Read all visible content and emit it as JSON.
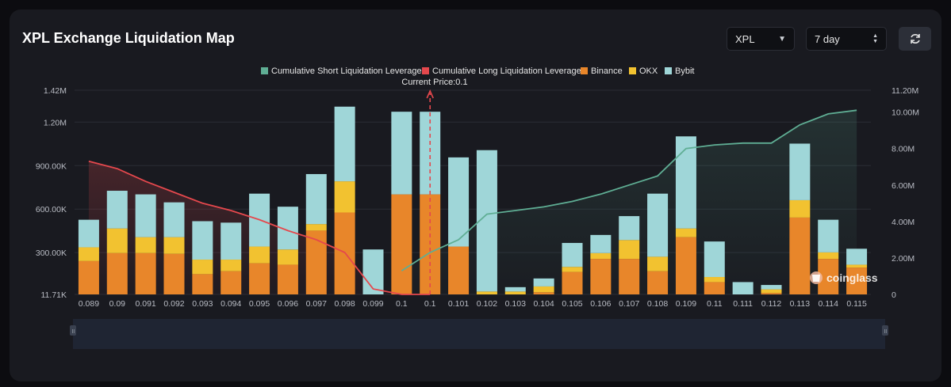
{
  "header": {
    "title": "XPL Exchange Liquidation Map",
    "symbol_value": "XPL",
    "range_value": "7 day"
  },
  "icons": {
    "symbol_dropdown": "caret-down-icon",
    "range_stepper": "up-down-chevron-icon",
    "refresh": "refresh-icon",
    "watermark": "coinglass-logo-icon"
  },
  "watermark": "coinglass",
  "colors": {
    "background": "#191a20",
    "short_line": "#5fae94",
    "long_line": "#e5484d",
    "binance": "#e8862a",
    "okx": "#f2c230",
    "bybit": "#9fd6d8",
    "current_price_marker": "#e5484d"
  },
  "chart_data": {
    "type": "bar",
    "stacked": true,
    "current_price_label": "Current Price:0.1",
    "current_price_index": 12,
    "categories": [
      "0.089",
      "0.09",
      "0.091",
      "0.092",
      "0.093",
      "0.094",
      "0.095",
      "0.096",
      "0.097",
      "0.098",
      "0.099",
      "0.1",
      "0.1",
      "0.101",
      "0.102",
      "0.103",
      "0.104",
      "0.105",
      "0.106",
      "0.107",
      "0.108",
      "0.109",
      "0.11",
      "0.111",
      "0.112",
      "0.113",
      "0.114",
      "0.115"
    ],
    "y_left": {
      "ticks": [
        "11.71K",
        "300.00K",
        "600.00K",
        "900.00K",
        "1.20M",
        "1.42M"
      ],
      "range": [
        11710,
        1420000
      ]
    },
    "y_right": {
      "ticks": [
        "0",
        "2.00M",
        "4.00M",
        "6.00M",
        "8.00M",
        "10.00M",
        "11.20M"
      ],
      "range": [
        0,
        11200000
      ]
    },
    "legend_position": "top-center",
    "grid": true,
    "series": [
      {
        "name": "Binance",
        "kind": "bar",
        "values": [
          230000,
          285000,
          285000,
          280000,
          140000,
          160000,
          215000,
          205000,
          440000,
          565000,
          0,
          690000,
          690000,
          330000,
          0,
          0,
          15000,
          155000,
          245000,
          245000,
          160000,
          395000,
          85000,
          0,
          10000,
          530000,
          245000,
          185000
        ]
      },
      {
        "name": "OKX",
        "kind": "bar",
        "values": [
          95000,
          170000,
          110000,
          115000,
          100000,
          80000,
          115000,
          105000,
          45000,
          215000,
          0,
          0,
          0,
          0,
          20000,
          20000,
          40000,
          35000,
          40000,
          130000,
          100000,
          60000,
          35000,
          0,
          25000,
          120000,
          45000,
          20000
        ]
      },
      {
        "name": "Bybit",
        "kind": "bar",
        "values": [
          190000,
          260000,
          295000,
          240000,
          265000,
          255000,
          365000,
          295000,
          345000,
          515000,
          310000,
          570000,
          570000,
          615000,
          975000,
          30000,
          55000,
          165000,
          125000,
          165000,
          435000,
          635000,
          245000,
          85000,
          30000,
          390000,
          225000,
          110000
        ]
      },
      {
        "name": "Cumulative Short Liquidation Leverage",
        "kind": "line",
        "axis": "right",
        "x_start": "0.1",
        "x_end": "0.115",
        "values": [
          null,
          null,
          null,
          null,
          null,
          null,
          null,
          null,
          null,
          null,
          null,
          1300000,
          2300000,
          3000000,
          4400000,
          4600000,
          4800000,
          5100000,
          5500000,
          6000000,
          6500000,
          8000000,
          8200000,
          8300000,
          8300000,
          9300000,
          9900000,
          10100000
        ]
      },
      {
        "name": "Cumulative Long Liquidation Leverage",
        "kind": "line",
        "axis": "right",
        "x_start": "0.089",
        "x_end": "0.1",
        "values": [
          7300000,
          6900000,
          6200000,
          5600000,
          5000000,
          4600000,
          4100000,
          3500000,
          3000000,
          2300000,
          300000,
          0,
          0,
          null,
          null,
          null,
          null,
          null,
          null,
          null,
          null,
          null,
          null,
          null,
          null,
          null,
          null,
          null
        ]
      }
    ]
  }
}
